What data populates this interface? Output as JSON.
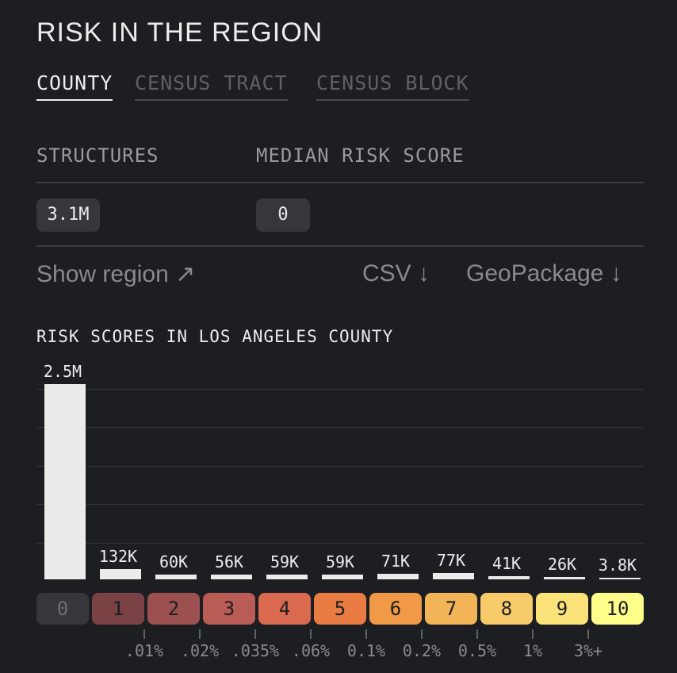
{
  "title": "RISK IN THE REGION",
  "tabs": [
    {
      "label": "COUNTY",
      "active": true
    },
    {
      "label": "CENSUS TRACT",
      "active": false
    },
    {
      "label": "CENSUS BLOCK",
      "active": false
    }
  ],
  "stats": {
    "structures_label": "STRUCTURES",
    "structures_value": "3.1M",
    "median_label": "MEDIAN RISK SCORE",
    "median_value": "0"
  },
  "links": {
    "show_region": "Show region ↗",
    "csv": "CSV ↓",
    "geopackage": "GeoPackage ↓"
  },
  "chart_data": {
    "type": "bar",
    "title": "RISK SCORES IN LOS ANGELES COUNTY",
    "categories": [
      "0",
      "1",
      "2",
      "3",
      "4",
      "5",
      "6",
      "7",
      "8",
      "9",
      "10"
    ],
    "values": [
      2500000,
      132000,
      60000,
      56000,
      59000,
      59000,
      71000,
      77000,
      41000,
      26000,
      3800
    ],
    "value_labels": [
      "2.5M",
      "132K",
      "60K",
      "56K",
      "59K",
      "59K",
      "71K",
      "77K",
      "41K",
      "26K",
      "3.8K"
    ],
    "colors": [
      "#36373b",
      "#7a4245",
      "#9c5050",
      "#b95c55",
      "#d96a4f",
      "#e87c42",
      "#f09a48",
      "#f2b457",
      "#f7cb6a",
      "#fbe37a",
      "#fdfd8a"
    ],
    "category_text_colors": [
      "#6e6f73",
      "#1c1e22",
      "#1c1e22",
      "#1c1e22",
      "#1c1e22",
      "#1c1e22",
      "#1c1e22",
      "#1c1e22",
      "#1c1e22",
      "#1c1e22",
      "#1c1e22"
    ],
    "thresholds": [
      ".01%",
      ".02%",
      ".035%",
      ".06%",
      "0.1%",
      "0.2%",
      "0.5%",
      "1%",
      "3%+"
    ],
    "ylim": [
      0,
      2500000
    ],
    "grid": true
  }
}
